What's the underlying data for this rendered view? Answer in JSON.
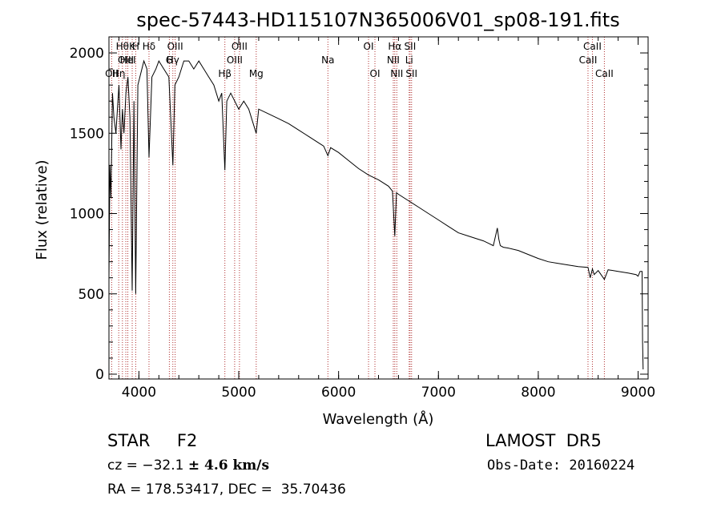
{
  "chart_data": {
    "type": "line",
    "title": "spec-57443-HD115107N365006V01_sp08-191.fits",
    "xlabel": "Wavelength (Å)",
    "ylabel": "Flux (relative)",
    "xlim": [
      3700,
      9100
    ],
    "ylim": [
      -30,
      2100
    ],
    "xticks": [
      4000,
      5000,
      6000,
      7000,
      8000,
      9000
    ],
    "yticks": [
      0,
      500,
      1000,
      1500,
      2000
    ],
    "grid": false,
    "line_color": "#000000",
    "marker_color": "#b03030",
    "series": [
      {
        "x": [
          3700,
          3710,
          3720,
          3735,
          3750,
          3770,
          3790,
          3800,
          3820,
          3835,
          3850,
          3870,
          3890,
          3910,
          3933,
          3950,
          3968,
          3990,
          4010,
          4050,
          4080,
          4101,
          4130,
          4170,
          4200,
          4250,
          4300,
          4340,
          4360,
          4400,
          4450,
          4500,
          4550,
          4600,
          4650,
          4700,
          4750,
          4800,
          4830,
          4861,
          4880,
          4920,
          4960,
          5000,
          5050,
          5100,
          5150,
          5175,
          5200,
          5300,
          5400,
          5500,
          5600,
          5700,
          5800,
          5850,
          5893,
          5920,
          6000,
          6100,
          6200,
          6300,
          6400,
          6500,
          6540,
          6563,
          6580,
          6600,
          6700,
          6800,
          6900,
          7000,
          7100,
          7200,
          7300,
          7400,
          7450,
          7500,
          7550,
          7590,
          7605,
          7620,
          7650,
          7700,
          7800,
          7900,
          8000,
          8100,
          8200,
          8300,
          8400,
          8498,
          8520,
          8542,
          8560,
          8600,
          8662,
          8700,
          8800,
          8900,
          8980,
          9000,
          9020,
          9040,
          9045,
          9050
        ],
        "y": [
          600,
          1300,
          1100,
          1750,
          1600,
          1500,
          1700,
          1800,
          1400,
          1650,
          1500,
          1750,
          1850,
          1600,
          520,
          1700,
          500,
          1800,
          1850,
          1950,
          1900,
          1350,
          1850,
          1900,
          1950,
          1900,
          1850,
          1300,
          1800,
          1850,
          1950,
          1950,
          1900,
          1950,
          1900,
          1850,
          1800,
          1700,
          1750,
          1270,
          1700,
          1750,
          1700,
          1650,
          1700,
          1650,
          1550,
          1500,
          1650,
          1620,
          1590,
          1560,
          1520,
          1480,
          1440,
          1420,
          1360,
          1410,
          1380,
          1330,
          1280,
          1240,
          1210,
          1170,
          1140,
          860,
          1130,
          1120,
          1080,
          1040,
          1000,
          960,
          920,
          880,
          860,
          840,
          830,
          815,
          800,
          910,
          840,
          800,
          790,
          785,
          770,
          745,
          720,
          700,
          690,
          680,
          670,
          665,
          600,
          655,
          620,
          645,
          590,
          650,
          640,
          630,
          620,
          610,
          640,
          640,
          200,
          30
        ]
      }
    ],
    "lines": [
      {
        "x": 3727,
        "label": "OII",
        "row": 3
      },
      {
        "x": 3798,
        "label": "Hη",
        "row": 3
      },
      {
        "x": 3835,
        "label": "Hθ",
        "row": 1
      },
      {
        "x": 3869,
        "label": "OIII",
        "row": 2
      },
      {
        "x": 3889,
        "label": "HeI",
        "row": 2
      },
      {
        "x": 3933,
        "label": "K",
        "row": 1
      },
      {
        "x": 3968,
        "label": "H",
        "row": 1
      },
      {
        "x": 4101,
        "label": "Hδ",
        "row": 1
      },
      {
        "x": 4305,
        "label": "G",
        "row": 2
      },
      {
        "x": 4340,
        "label": "Hγ",
        "row": 2
      },
      {
        "x": 4363,
        "label": "OIII",
        "row": 1
      },
      {
        "x": 4861,
        "label": "Hβ",
        "row": 3
      },
      {
        "x": 4959,
        "label": "OIII",
        "row": 2
      },
      {
        "x": 5007,
        "label": "OIII",
        "row": 1
      },
      {
        "x": 5175,
        "label": "Mg",
        "row": 3
      },
      {
        "x": 5893,
        "label": "Na",
        "row": 2
      },
      {
        "x": 6300,
        "label": "OI",
        "row": 1
      },
      {
        "x": 6364,
        "label": "OI",
        "row": 3
      },
      {
        "x": 6548,
        "label": "NII",
        "row": 2
      },
      {
        "x": 6563,
        "label": "Hα",
        "row": 1
      },
      {
        "x": 6583,
        "label": "NII",
        "row": 3
      },
      {
        "x": 6707,
        "label": "Li",
        "row": 2
      },
      {
        "x": 6716,
        "label": "SII",
        "row": 1
      },
      {
        "x": 6731,
        "label": "SII",
        "row": 3
      },
      {
        "x": 8498,
        "label": "CaII",
        "row": 2
      },
      {
        "x": 8542,
        "label": "CaII",
        "row": 1
      },
      {
        "x": 8662,
        "label": "CaII",
        "row": 3
      }
    ]
  },
  "info": {
    "object_type": "STAR     F2",
    "survey": "LAMOST  DR5",
    "cz_prefix": "cz = −32.1 ",
    "cz_error": "± 4.6 km/s",
    "obs_date": "Obs-Date: 20160224",
    "coordinates": "RA = 178.53417, DEC =  35.70436"
  }
}
